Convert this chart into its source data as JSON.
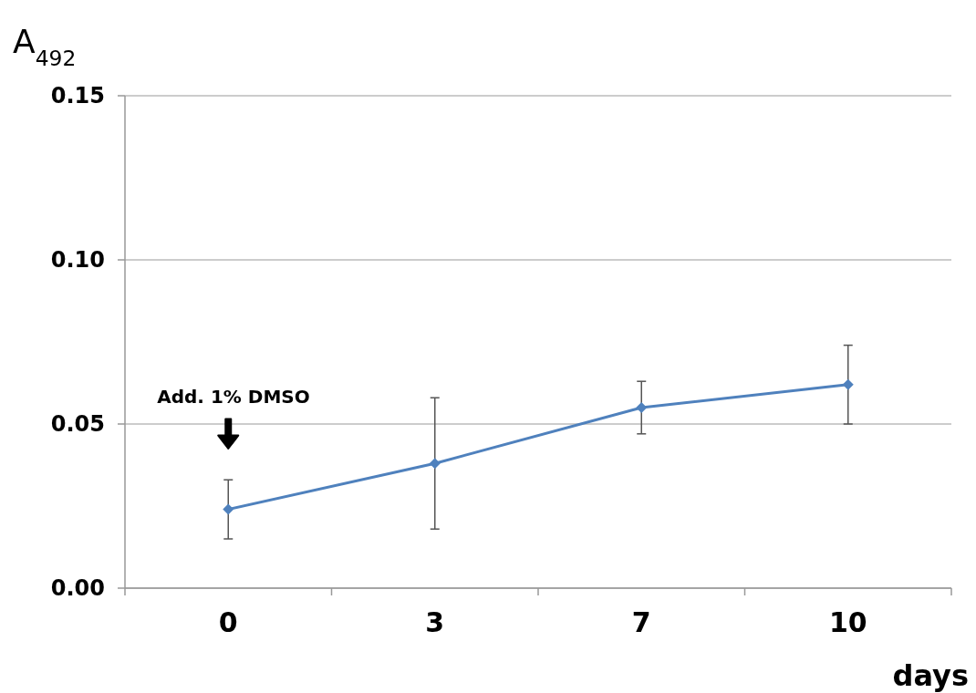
{
  "chart_data": {
    "type": "line",
    "ylabel": "A$_{492}$",
    "xlabel": "days",
    "categories": [
      "0",
      "3",
      "7",
      "10"
    ],
    "series": [
      {
        "color": "#4f81bd",
        "values": [
          0.024,
          0.038,
          0.055,
          0.062
        ],
        "errors": [
          0.009,
          0.02,
          0.008,
          0.012
        ]
      }
    ],
    "ylim": [
      0,
      0.15
    ],
    "yticks": [
      {
        "value": 0,
        "label": "0.00"
      },
      {
        "value": 0.05,
        "label": "0.05"
      },
      {
        "value": 0.1,
        "label": "0.10"
      },
      {
        "value": 0.15,
        "label": "0.15"
      }
    ],
    "grid": "y",
    "marker": "diamond",
    "line_style": "solid",
    "annotations": [
      "Add. 1% DMSO"
    ]
  }
}
